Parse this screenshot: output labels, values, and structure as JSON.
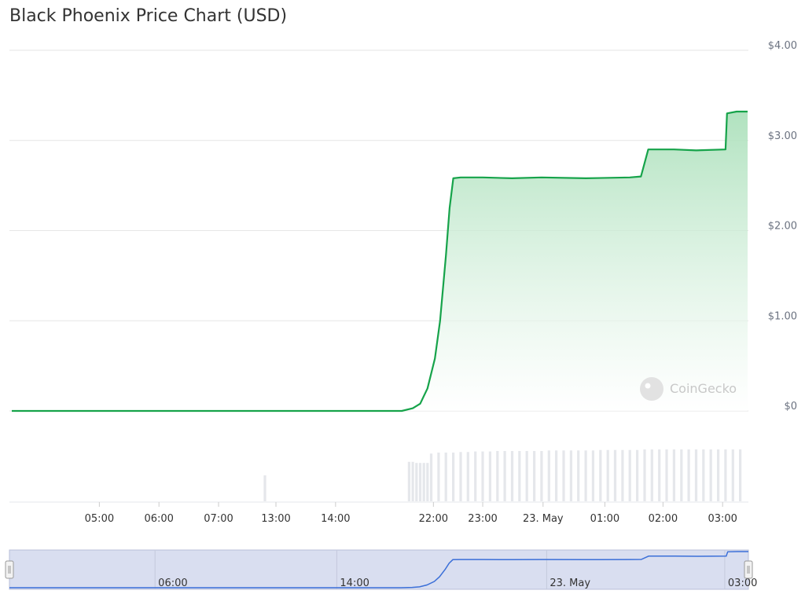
{
  "title": "Black Phoenix Price Chart (USD)",
  "watermark": "CoinGecko",
  "colors": {
    "line": "#16a34a",
    "fill_top": "#b7e4c4",
    "bar": "#e5e7eb",
    "nav_line": "#3b6fd8",
    "nav_bg": "#d9def0"
  },
  "chart_data": {
    "type": "line",
    "title": "Black Phoenix Price Chart (USD)",
    "xlabel": "",
    "ylabel": "",
    "ylim": [
      0,
      4
    ],
    "grid": true,
    "y_ticks": [
      "$0",
      "$1.00",
      "$2.00",
      "$3.00",
      "$4.00"
    ],
    "x_ticks": [
      "05:00",
      "06:00",
      "07:00",
      "13:00",
      "14:00",
      "22:00",
      "23:00",
      "23. May",
      "01:00",
      "02:00",
      "03:00"
    ],
    "nav_ticks": [
      "06:00",
      "14:00",
      "23. May",
      "03:00"
    ],
    "series": [
      {
        "name": "",
        "t": [
          0,
          0.53,
          0.545,
          0.555,
          0.565,
          0.575,
          0.582,
          0.59,
          0.595,
          0.6,
          0.61,
          0.64,
          0.68,
          0.72,
          0.78,
          0.84,
          0.855,
          0.865,
          0.9,
          0.93,
          0.97,
          0.972,
          0.985,
          1.0
        ],
        "values": [
          0.0,
          0.0,
          0.03,
          0.08,
          0.25,
          0.58,
          1.0,
          1.72,
          2.25,
          2.58,
          2.59,
          2.59,
          2.58,
          2.59,
          2.58,
          2.59,
          2.6,
          2.9,
          2.9,
          2.89,
          2.9,
          3.3,
          3.32,
          3.32
        ]
      }
    ],
    "volume": {
      "t": [
        0.344,
        0.54,
        0.545,
        0.55,
        0.555,
        0.56,
        0.565,
        0.57,
        0.58,
        0.59,
        0.6,
        0.61,
        0.62,
        0.63,
        0.64,
        0.65,
        0.66,
        0.67,
        0.68,
        0.69,
        0.7,
        0.71,
        0.72,
        0.73,
        0.74,
        0.75,
        0.76,
        0.77,
        0.78,
        0.79,
        0.8,
        0.81,
        0.82,
        0.83,
        0.84,
        0.85,
        0.86,
        0.87,
        0.88,
        0.89,
        0.9,
        0.91,
        0.92,
        0.93,
        0.94,
        0.95,
        0.96,
        0.97,
        0.98,
        0.99
      ],
      "values": [
        0.5,
        0.76,
        0.76,
        0.74,
        0.74,
        0.74,
        0.74,
        0.92,
        0.94,
        0.94,
        0.94,
        0.95,
        0.95,
        0.96,
        0.96,
        0.96,
        0.97,
        0.97,
        0.97,
        0.97,
        0.97,
        0.97,
        0.97,
        0.98,
        0.98,
        0.98,
        0.98,
        0.98,
        0.98,
        0.98,
        0.99,
        0.99,
        0.99,
        0.99,
        0.99,
        0.99,
        1.0,
        1.0,
        1.0,
        1.0,
        1.0,
        1.0,
        1.0,
        1.0,
        1.0,
        1.0,
        1.0,
        1.0,
        1.0,
        1.0
      ]
    }
  }
}
